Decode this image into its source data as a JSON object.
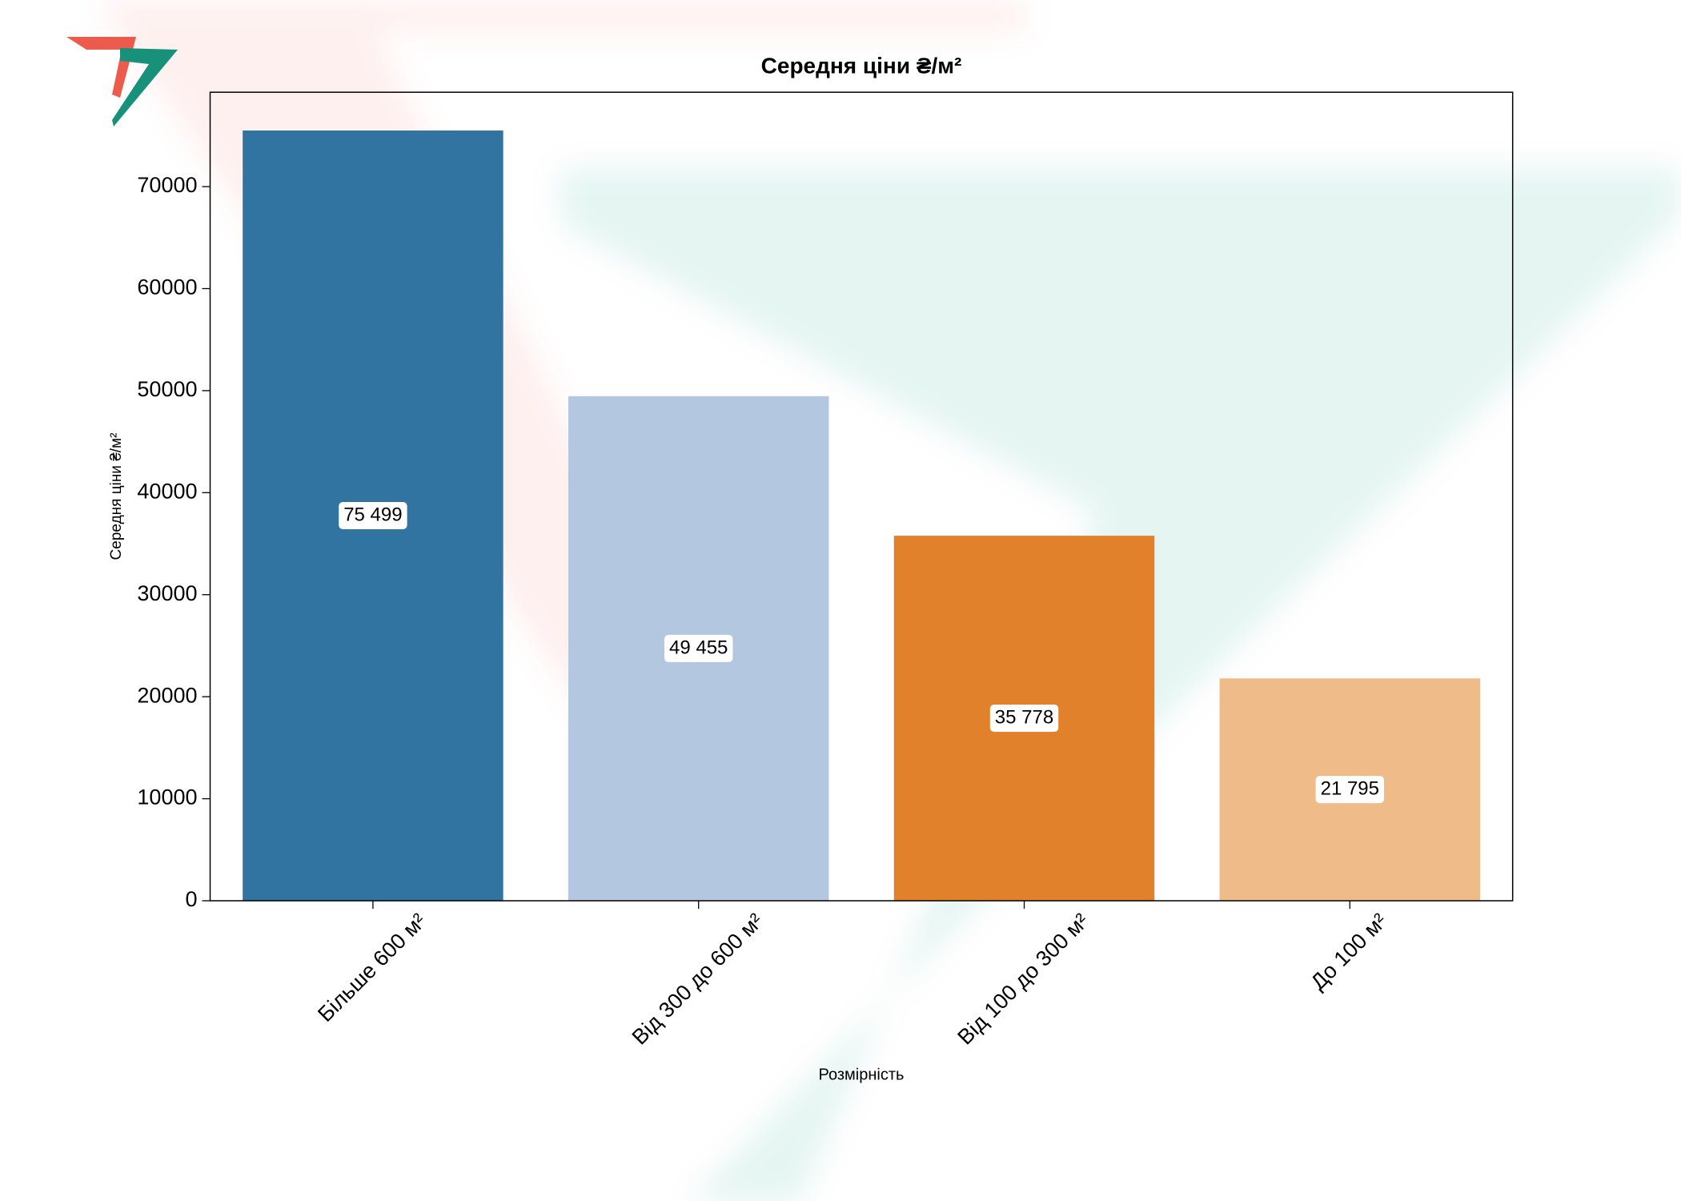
{
  "chart_data": {
    "type": "bar",
    "title": "Середня ціни ₴/м²",
    "x_label": "Розмірність",
    "y_label": "Середня ціни ₴/м²",
    "categories": [
      "Більше 600 м²",
      "Від 300 до 600 м²",
      "Від 100 до 300 м²",
      "До 100 м²"
    ],
    "values": [
      75499,
      49455,
      35778,
      21795
    ],
    "value_labels": [
      "75 499",
      "49 455",
      "35 778",
      "21 795"
    ],
    "colors": [
      "#3274a1",
      "#b4c7e1",
      "#e1812c",
      "#eebb89"
    ],
    "ylim": [
      0,
      79250
    ],
    "yticks": [
      0,
      10000,
      20000,
      30000,
      40000,
      50000,
      60000,
      70000
    ]
  }
}
